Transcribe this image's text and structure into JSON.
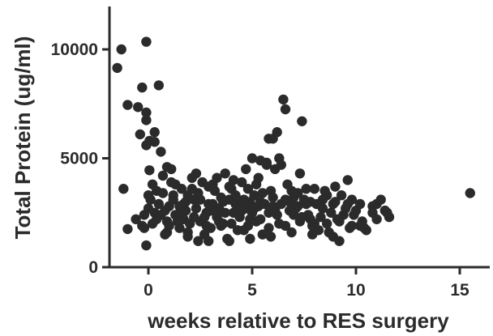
{
  "chart_data": {
    "type": "scatter",
    "title": "",
    "xlabel": "weeks relative to RES surgery",
    "ylabel": "Total Protein (ug/ml)",
    "xlim": [
      -2,
      17
    ],
    "ylim": [
      0,
      12000
    ],
    "xticks": [
      0,
      5,
      10,
      15
    ],
    "yticks": [
      0,
      5000,
      10000
    ],
    "xtick_labels": [
      "0",
      "5",
      "10",
      "15"
    ],
    "ytick_labels": [
      "0",
      "5000",
      "10000"
    ],
    "grid": false,
    "legend": "none",
    "point_color": "#2b2b2b",
    "points": [
      [
        -1.5,
        9150
      ],
      [
        -1.3,
        10000
      ],
      [
        -0.1,
        10350
      ],
      [
        -1.2,
        3600
      ],
      [
        -1.0,
        1750
      ],
      [
        -1.0,
        7450
      ],
      [
        -0.5,
        7350
      ],
      [
        -0.3,
        8250
      ],
      [
        0.5,
        8350
      ],
      [
        -0.4,
        6100
      ],
      [
        -0.1,
        6750
      ],
      [
        0.05,
        5800
      ],
      [
        -0.1,
        5600
      ],
      [
        0.3,
        6200
      ],
      [
        0.05,
        4450
      ],
      [
        0.6,
        5300
      ],
      [
        -0.1,
        7100
      ],
      [
        0.3,
        5750
      ],
      [
        -0.1,
        1000
      ],
      [
        -0.2,
        1800
      ],
      [
        0.2,
        2000
      ],
      [
        0.0,
        2700
      ],
      [
        0.1,
        3100
      ],
      [
        0.4,
        3500
      ],
      [
        0.7,
        4200
      ],
      [
        0.9,
        4600
      ],
      [
        1.1,
        3900
      ],
      [
        1.3,
        2400
      ],
      [
        1.5,
        1800
      ],
      [
        1.7,
        2900
      ],
      [
        1.9,
        3300
      ],
      [
        2.1,
        4100
      ],
      [
        2.3,
        2700
      ],
      [
        2.5,
        2100
      ],
      [
        2.7,
        1500
      ],
      [
        2.9,
        3700
      ],
      [
        3.1,
        2900
      ],
      [
        3.3,
        2300
      ],
      [
        3.5,
        1900
      ],
      [
        3.7,
        4300
      ],
      [
        3.9,
        3100
      ],
      [
        4.1,
        2500
      ],
      [
        4.3,
        1700
      ],
      [
        4.5,
        3900
      ],
      [
        4.7,
        2700
      ],
      [
        4.9,
        2200
      ],
      [
        5.1,
        3300
      ],
      [
        5.3,
        2800
      ],
      [
        5.5,
        1500
      ],
      [
        5.7,
        4800
      ],
      [
        5.9,
        3500
      ],
      [
        6.1,
        2600
      ],
      [
        6.3,
        5000
      ],
      [
        6.5,
        7700
      ],
      [
        6.6,
        7250
      ],
      [
        6.8,
        3000
      ],
      [
        7.0,
        2400
      ],
      [
        7.2,
        3400
      ],
      [
        7.4,
        6700
      ],
      [
        7.6,
        2900
      ],
      [
        7.8,
        2200
      ],
      [
        8.0,
        3600
      ],
      [
        8.2,
        1700
      ],
      [
        8.4,
        2700
      ],
      [
        8.6,
        3300
      ],
      [
        8.8,
        2500
      ],
      [
        9.0,
        3700
      ],
      [
        9.2,
        1200
      ],
      [
        9.4,
        2400
      ],
      [
        9.6,
        4000
      ],
      [
        9.8,
        3100
      ],
      [
        10.0,
        2600
      ],
      [
        10.2,
        1900
      ],
      [
        10.5,
        1700
      ],
      [
        10.8,
        2500
      ],
      [
        11.0,
        2900
      ],
      [
        11.2,
        3100
      ],
      [
        11.4,
        2600
      ],
      [
        11.6,
        2300
      ],
      [
        15.5,
        3400
      ],
      [
        -0.6,
        2200
      ],
      [
        -0.3,
        1900
      ],
      [
        0.6,
        2400
      ],
      [
        0.8,
        1500
      ],
      [
        1.0,
        2800
      ],
      [
        1.2,
        3300
      ],
      [
        1.4,
        2100
      ],
      [
        1.6,
        3600
      ],
      [
        1.8,
        2600
      ],
      [
        2.0,
        2000
      ],
      [
        2.2,
        3100
      ],
      [
        2.4,
        1200
      ],
      [
        2.6,
        3900
      ],
      [
        2.8,
        2500
      ],
      [
        3.0,
        1800
      ],
      [
        3.2,
        3500
      ],
      [
        3.4,
        2700
      ],
      [
        3.6,
        2000
      ],
      [
        3.8,
        1300
      ],
      [
        4.0,
        3600
      ],
      [
        4.2,
        2900
      ],
      [
        4.4,
        2300
      ],
      [
        4.6,
        3100
      ],
      [
        4.8,
        1900
      ],
      [
        5.0,
        2500
      ],
      [
        5.2,
        3800
      ],
      [
        5.4,
        2200
      ],
      [
        5.6,
        2900
      ],
      [
        5.8,
        1800
      ],
      [
        6.0,
        3200
      ],
      [
        6.2,
        2400
      ],
      [
        6.4,
        2900
      ],
      [
        6.6,
        1900
      ],
      [
        6.9,
        3500
      ],
      [
        7.1,
        2700
      ],
      [
        7.3,
        2100
      ],
      [
        7.5,
        3100
      ],
      [
        7.7,
        2400
      ],
      [
        7.9,
        1900
      ],
      [
        8.1,
        2900
      ],
      [
        8.3,
        2300
      ],
      [
        8.5,
        3500
      ],
      [
        8.7,
        1600
      ],
      [
        8.9,
        2900
      ],
      [
        9.1,
        2200
      ],
      [
        9.3,
        3300
      ],
      [
        9.5,
        2700
      ],
      [
        9.7,
        1800
      ],
      [
        9.9,
        2400
      ],
      [
        10.3,
        2100
      ],
      [
        0.2,
        3800
      ],
      [
        0.5,
        2900
      ],
      [
        0.7,
        3400
      ],
      [
        0.9,
        2100
      ],
      [
        1.1,
        4500
      ],
      [
        1.3,
        3800
      ],
      [
        1.5,
        2800
      ],
      [
        1.7,
        2200
      ],
      [
        1.9,
        1600
      ],
      [
        2.1,
        3600
      ],
      [
        2.3,
        4300
      ],
      [
        2.5,
        3100
      ],
      [
        2.7,
        2300
      ],
      [
        2.9,
        2900
      ],
      [
        3.1,
        3800
      ],
      [
        3.3,
        4100
      ],
      [
        3.5,
        3200
      ],
      [
        3.7,
        2500
      ],
      [
        3.9,
        3700
      ],
      [
        4.1,
        4000
      ],
      [
        4.3,
        2900
      ],
      [
        4.5,
        2600
      ],
      [
        4.7,
        4500
      ],
      [
        4.9,
        3000
      ],
      [
        5.1,
        2700
      ],
      [
        5.3,
        4100
      ],
      [
        5.5,
        3400
      ],
      [
        5.8,
        5900
      ],
      [
        6.0,
        5900
      ],
      [
        6.2,
        6200
      ],
      [
        6.4,
        4700
      ],
      [
        6.7,
        3800
      ],
      [
        7.0,
        3200
      ],
      [
        7.3,
        4300
      ],
      [
        7.6,
        3600
      ],
      [
        5.0,
        5000
      ],
      [
        5.4,
        4900
      ],
      [
        5.7,
        4700
      ],
      [
        6.1,
        4500
      ],
      [
        4.8,
        3600
      ],
      [
        0.4,
        2200
      ],
      [
        1.0,
        1900
      ],
      [
        1.6,
        2500
      ],
      [
        2.2,
        2300
      ],
      [
        2.8,
        1900
      ],
      [
        3.4,
        2100
      ],
      [
        4.0,
        2000
      ],
      [
        4.6,
        1700
      ],
      [
        5.2,
        2100
      ],
      [
        5.8,
        2500
      ],
      [
        6.3,
        2000
      ],
      [
        6.8,
        2600
      ],
      [
        7.4,
        2300
      ],
      [
        8.0,
        2000
      ],
      [
        8.6,
        2000
      ],
      [
        9.2,
        2100
      ],
      [
        9.8,
        1900
      ],
      [
        10.4,
        1800
      ],
      [
        11.0,
        2200
      ],
      [
        11.5,
        2500
      ],
      [
        0.0,
        3300
      ],
      [
        0.3,
        2500
      ],
      [
        0.8,
        2600
      ],
      [
        1.2,
        3100
      ],
      [
        1.8,
        3000
      ],
      [
        2.4,
        3400
      ],
      [
        3.0,
        2600
      ],
      [
        3.6,
        3000
      ],
      [
        4.2,
        3300
      ],
      [
        4.8,
        2800
      ],
      [
        5.4,
        3000
      ],
      [
        6.0,
        2800
      ],
      [
        6.6,
        3100
      ],
      [
        7.2,
        2800
      ],
      [
        7.8,
        3000
      ],
      [
        8.4,
        3100
      ],
      [
        9.0,
        3000
      ],
      [
        9.6,
        2900
      ],
      [
        10.2,
        2900
      ],
      [
        10.8,
        2800
      ],
      [
        -0.2,
        2400
      ],
      [
        0.9,
        1600
      ],
      [
        1.9,
        1400
      ],
      [
        2.9,
        1200
      ],
      [
        3.9,
        1200
      ],
      [
        4.9,
        1300
      ],
      [
        5.9,
        1400
      ],
      [
        6.9,
        1600
      ],
      [
        7.9,
        1500
      ],
      [
        8.9,
        1400
      ]
    ]
  }
}
